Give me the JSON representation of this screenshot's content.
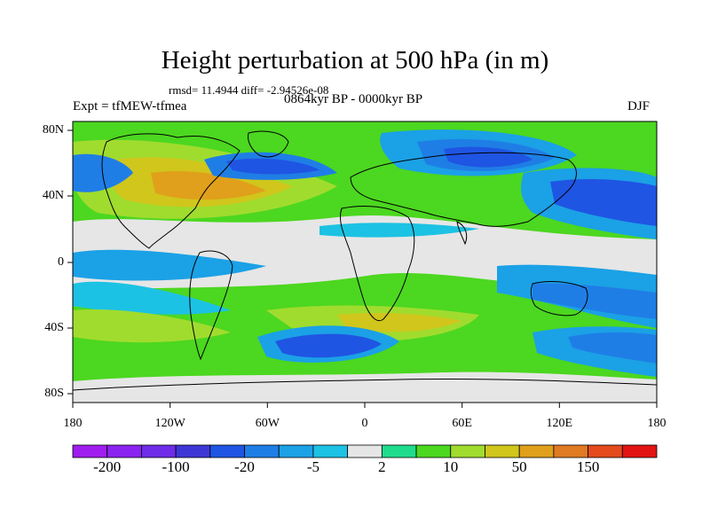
{
  "header": {
    "title": "Height perturbation at 500 hPa (in m)",
    "stats": "rmsd= 11.4944  diff= -2.94526e-08",
    "period": "0864kyr BP - 0000kyr BP",
    "experiment": "Expt = tfMEW-tfmea",
    "season": "DJF"
  },
  "axes": {
    "x_ticks": [
      "180",
      "120W",
      "60W",
      "0",
      "60E",
      "120E",
      "180"
    ],
    "y_ticks": [
      "80N",
      "40N",
      "0",
      "40S",
      "80S"
    ]
  },
  "colorbar": {
    "colors": [
      "#9f1eef",
      "#8a23f0",
      "#6e2ce8",
      "#3e37d6",
      "#1f55e3",
      "#1f7ee6",
      "#1ba1e6",
      "#1cc2e3",
      "#e6e6e6",
      "#1fdc8c",
      "#4cd720",
      "#a0dc2e",
      "#d0c61c",
      "#e0a01b",
      "#e07a23",
      "#e34a1c",
      "#e21414"
    ],
    "labels": [
      "-200",
      "-100",
      "-20",
      "-5",
      "2",
      "10",
      "50",
      "150"
    ]
  },
  "map_colors": {
    "land_line": "#000000",
    "ocean_bg": "#1fdc8c"
  }
}
